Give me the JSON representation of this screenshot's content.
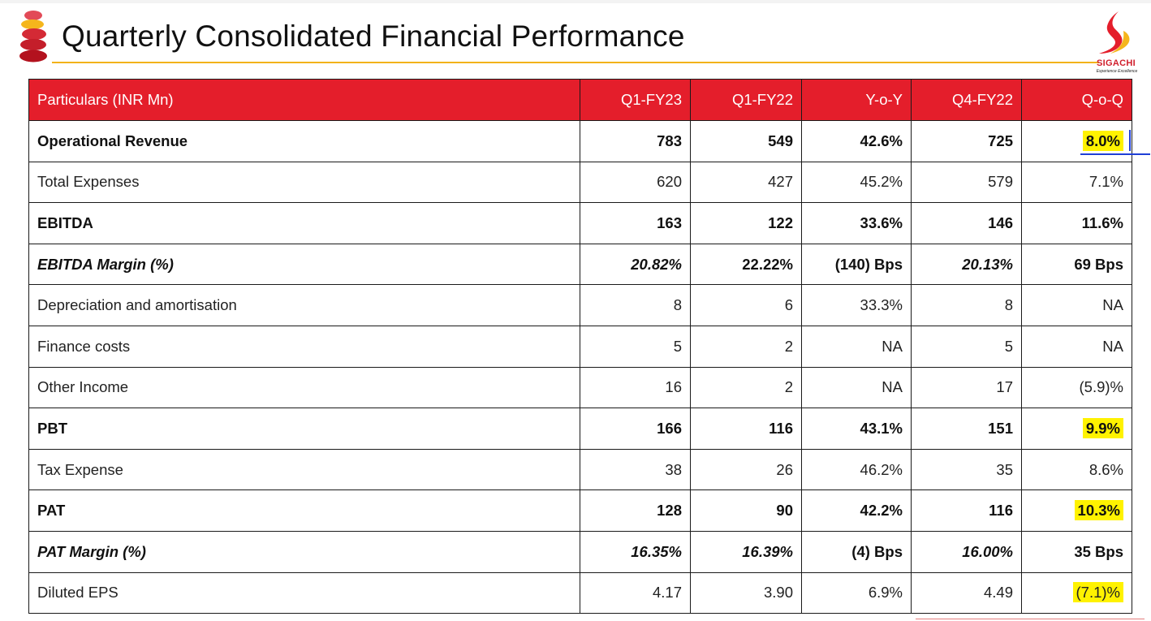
{
  "slide": {
    "title": "Quarterly Consolidated Financial Performance"
  },
  "logo": {
    "name": "SIGACHI",
    "tagline": "Experience Excellence"
  },
  "colors": {
    "header_bg": "#e41e2b",
    "accent_rule": "#f2b21a",
    "highlight": "#fff200",
    "annotation": "#1f3fd6"
  },
  "table": {
    "headers": [
      "Particulars (INR Mn)",
      "Q1-FY23",
      "Q1-FY22",
      "Y-o-Y",
      "Q4-FY22",
      "Q-o-Q"
    ],
    "rows": [
      {
        "label": "Operational Revenue",
        "q1fy23": "783",
        "q1fy22": "549",
        "yoy": "42.6%",
        "q4fy22": "725",
        "qoq": "8.0%"
      },
      {
        "label": "Total Expenses",
        "q1fy23": "620",
        "q1fy22": "427",
        "yoy": "45.2%",
        "q4fy22": "579",
        "qoq": "7.1%"
      },
      {
        "label": "EBITDA",
        "q1fy23": "163",
        "q1fy22": "122",
        "yoy": "33.6%",
        "q4fy22": "146",
        "qoq": "11.6%"
      },
      {
        "label": "EBITDA Margin (%)",
        "q1fy23": "20.82%",
        "q1fy22": "22.22%",
        "yoy": "(140) Bps",
        "q4fy22": "20.13%",
        "qoq": "69 Bps"
      },
      {
        "label": "Depreciation and amortisation",
        "q1fy23": "8",
        "q1fy22": "6",
        "yoy": "33.3%",
        "q4fy22": "8",
        "qoq": "NA"
      },
      {
        "label": "Finance costs",
        "q1fy23": "5",
        "q1fy22": "2",
        "yoy": "NA",
        "q4fy22": "5",
        "qoq": "NA"
      },
      {
        "label": "Other Income",
        "q1fy23": "16",
        "q1fy22": "2",
        "yoy": "NA",
        "q4fy22": "17",
        "qoq": "(5.9)%"
      },
      {
        "label": "PBT",
        "q1fy23": "166",
        "q1fy22": "116",
        "yoy": "43.1%",
        "q4fy22": "151",
        "qoq": "9.9%"
      },
      {
        "label": "Tax Expense",
        "q1fy23": "38",
        "q1fy22": "26",
        "yoy": "46.2%",
        "q4fy22": "35",
        "qoq": "8.6%"
      },
      {
        "label": "PAT",
        "q1fy23": "128",
        "q1fy22": "90",
        "yoy": "42.2%",
        "q4fy22": "116",
        "qoq": "10.3%"
      },
      {
        "label": "PAT Margin (%)",
        "q1fy23": "16.35%",
        "q1fy22": "16.39%",
        "yoy": "(4) Bps",
        "q4fy22": "16.00%",
        "qoq": "35 Bps"
      },
      {
        "label": "Diluted EPS",
        "q1fy23": "4.17",
        "q1fy22": "3.90",
        "yoy": "6.9%",
        "q4fy22": "4.49",
        "qoq": "(7.1)%"
      }
    ]
  }
}
